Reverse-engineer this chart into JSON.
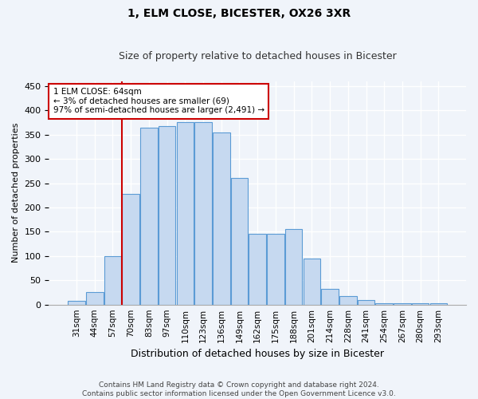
{
  "title_line1": "1, ELM CLOSE, BICESTER, OX26 3XR",
  "title_line2": "Size of property relative to detached houses in Bicester",
  "xlabel": "Distribution of detached houses by size in Bicester",
  "ylabel": "Number of detached properties",
  "footnote": "Contains HM Land Registry data © Crown copyright and database right 2024.\nContains public sector information licensed under the Open Government Licence v3.0.",
  "bar_labels": [
    "31sqm",
    "44sqm",
    "57sqm",
    "70sqm",
    "83sqm",
    "97sqm",
    "110sqm",
    "123sqm",
    "136sqm",
    "149sqm",
    "162sqm",
    "175sqm",
    "188sqm",
    "201sqm",
    "214sqm",
    "228sqm",
    "241sqm",
    "254sqm",
    "267sqm",
    "280sqm",
    "293sqm"
  ],
  "bar_heights": [
    8,
    25,
    100,
    228,
    365,
    368,
    375,
    375,
    355,
    260,
    145,
    145,
    155,
    95,
    32,
    18,
    9,
    3,
    3,
    2,
    2
  ],
  "bar_color": "#c6d9f0",
  "bar_edge_color": "#5b9bd5",
  "vline_x_index": 2,
  "vline_color": "#cc0000",
  "ylim_max": 460,
  "yticks": [
    0,
    50,
    100,
    150,
    200,
    250,
    300,
    350,
    400,
    450
  ],
  "annotation_text": "1 ELM CLOSE: 64sqm\n← 3% of detached houses are smaller (69)\n97% of semi-detached houses are larger (2,491) →",
  "annotation_box_color": "#cc0000",
  "background_color": "#f0f4fa",
  "plot_bg_color": "#f0f4fa",
  "grid_color": "#ffffff",
  "title1_fontsize": 10,
  "title2_fontsize": 9
}
